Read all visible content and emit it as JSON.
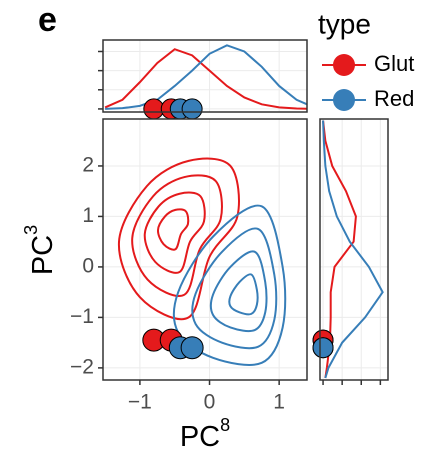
{
  "chart_data": {
    "type": "contour_marginal",
    "panel_label": "e",
    "xlabel": {
      "text": "PC",
      "superscript": "8"
    },
    "ylabel": {
      "text": "PC",
      "superscript": "3"
    },
    "legend_title": "type",
    "xlim": [
      -1.53,
      1.4
    ],
    "xticks": [
      {
        "value": -1,
        "label": "−1"
      },
      0,
      1
    ],
    "ylim": [
      -2.24,
      2.93
    ],
    "yticks": [
      {
        "value": -2,
        "label": "−2"
      },
      {
        "value": -1,
        "label": "−1"
      },
      0,
      1,
      2
    ],
    "top_density_ylim": [
      -0.04,
      0.9
    ],
    "top_density_yticks": [
      0,
      0.25,
      0.5,
      0.75
    ],
    "right_density_xlim": [
      -0.04,
      0.85
    ],
    "right_density_xticks": [
      0,
      0.25,
      0.5,
      0.75
    ],
    "grid": true,
    "series": [
      {
        "name": "Glut",
        "color": "#e41a1c",
        "contours": [
          {
            "x": [
              -1.3,
              -0.9,
              -0.3,
              0.3,
              0.4,
              0.0,
              -0.3,
              -1.0
            ],
            "y": [
              0.5,
              1.6,
              2.1,
              2.0,
              1.0,
              0.2,
              -1.0,
              -0.6
            ]
          },
          {
            "x": [
              -1.11,
              -0.81,
              -0.36,
              0.09,
              0.16,
              -0.14,
              -0.36,
              -0.89
            ],
            "y": [
              0.57,
              1.4,
              1.78,
              1.7,
              0.95,
              0.35,
              -0.55,
              -0.25
            ]
          },
          {
            "x": [
              -0.93,
              -0.73,
              -0.43,
              -0.13,
              -0.08,
              -0.28,
              -0.43,
              -0.78
            ],
            "y": [
              0.65,
              1.2,
              1.45,
              1.4,
              0.9,
              0.5,
              -0.1,
              0.1
            ]
          },
          {
            "x": [
              -0.74,
              -0.64,
              -0.49,
              -0.34,
              -0.31,
              -0.41,
              -0.49,
              -0.66
            ],
            "y": [
              0.73,
              1.0,
              1.13,
              1.1,
              0.85,
              0.65,
              0.35,
              0.45
            ]
          }
        ],
        "points": {
          "x": [
            -0.8,
            -0.55
          ],
          "y": [
            -1.45,
            -1.45
          ]
        },
        "x_density": {
          "x": [
            -1.5,
            -1.25,
            -1,
            -0.75,
            -0.5,
            -0.25,
            0,
            0.25,
            0.5,
            0.75,
            1,
            1.25,
            1.4
          ],
          "values": [
            0.02,
            0.12,
            0.35,
            0.6,
            0.78,
            0.7,
            0.5,
            0.3,
            0.15,
            0.06,
            0.02,
            0.005,
            0.002
          ]
        },
        "y_density": {
          "y": [
            2.9,
            2.5,
            2,
            1.5,
            1,
            0.5,
            0,
            -0.5,
            -1,
            -1.5,
            -2,
            -2.2
          ],
          "values": [
            0.0,
            0.03,
            0.12,
            0.3,
            0.43,
            0.4,
            0.15,
            0.1,
            0.1,
            0.09,
            0.05,
            0.03
          ]
        }
      },
      {
        "name": "Red",
        "color": "#377eb8",
        "contours": [
          {
            "x": [
              -0.45,
              0.05,
              0.75,
              1.05,
              1.05,
              0.75,
              0.05,
              -0.45
            ],
            "y": [
              -0.5,
              0.6,
              1.2,
              0.0,
              -1.2,
              -1.9,
              -1.8,
              -1.3
            ]
          },
          {
            "x": [
              -0.2,
              0.18,
              0.7,
              0.93,
              0.93,
              0.7,
              0.18,
              -0.2
            ],
            "y": [
              -0.53,
              0.3,
              0.75,
              -0.15,
              -1.05,
              -1.58,
              -1.5,
              -1.13
            ]
          },
          {
            "x": [
              0.05,
              0.3,
              0.65,
              0.8,
              0.8,
              0.65,
              0.3,
              0.05
            ],
            "y": [
              -0.55,
              0.0,
              0.3,
              -0.3,
              -0.9,
              -1.25,
              -1.2,
              -0.95
            ]
          },
          {
            "x": [
              0.3,
              0.43,
              0.6,
              0.68,
              0.68,
              0.6,
              0.43,
              0.3
            ],
            "y": [
              -0.58,
              -0.3,
              -0.15,
              -0.45,
              -0.75,
              -0.93,
              -0.9,
              -0.78
            ]
          }
        ],
        "points": {
          "x": [
            -0.42,
            -0.25
          ],
          "y": [
            -1.6,
            -1.6
          ]
        },
        "x_density": {
          "x": [
            -1.5,
            -1.25,
            -1,
            -0.75,
            -0.5,
            -0.25,
            0,
            0.25,
            0.5,
            0.75,
            1,
            1.25,
            1.4
          ],
          "values": [
            0,
            0.01,
            0.04,
            0.12,
            0.3,
            0.5,
            0.72,
            0.83,
            0.75,
            0.55,
            0.3,
            0.12,
            0.06
          ]
        },
        "y_density": {
          "y": [
            2.9,
            2.5,
            2,
            1.5,
            1,
            0.5,
            0,
            -0.5,
            -1,
            -1.5,
            -2,
            -2.2
          ],
          "values": [
            0,
            0.01,
            0.03,
            0.08,
            0.18,
            0.35,
            0.6,
            0.78,
            0.55,
            0.25,
            0.07,
            0.03
          ]
        }
      }
    ]
  }
}
